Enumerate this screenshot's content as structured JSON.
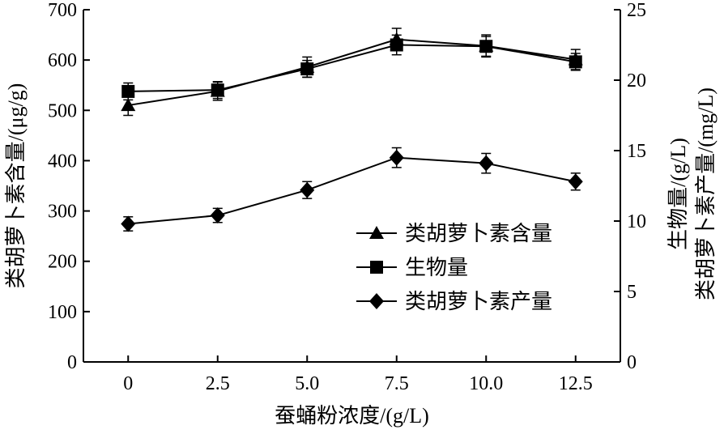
{
  "chart_data": {
    "type": "line",
    "x": [
      0,
      2.5,
      5.0,
      7.5,
      10.0,
      12.5
    ],
    "x_tick_labels": [
      "0",
      "2.5",
      "5.0",
      "7.5",
      "10.0",
      "12.5"
    ],
    "xlim": [
      -1.25,
      13.75
    ],
    "xlabel": "蚕蛹粉浓度/(g/L)",
    "ylabel_left": "类胡萝卜素含量/(μg/g)",
    "ylim_left": [
      0,
      700
    ],
    "yticks_left": [
      0,
      100,
      200,
      300,
      400,
      500,
      600,
      700
    ],
    "ylabel_right_line1": "生物量/(g/L)",
    "ylabel_right_line2": "类胡萝卜素产量/(mg/L)",
    "ylim_right": [
      0,
      25
    ],
    "yticks_right": [
      0,
      5,
      10,
      15,
      20,
      25
    ],
    "grid": false,
    "legend_position": "lower-right",
    "series": [
      {
        "name": "类胡萝卜素含量",
        "axis": "left",
        "marker": "triangle",
        "values": [
          510,
          538,
          586,
          641,
          628,
          601
        ],
        "errors": [
          20,
          18,
          20,
          22,
          22,
          20
        ]
      },
      {
        "name": "生物量",
        "axis": "right",
        "marker": "square",
        "values": [
          19.2,
          19.3,
          20.8,
          22.5,
          22.4,
          21.3
        ],
        "errors": [
          0.6,
          0.6,
          0.6,
          0.7,
          0.7,
          0.6
        ]
      },
      {
        "name": "类胡萝卜素产量",
        "axis": "right",
        "marker": "diamond",
        "values": [
          9.8,
          10.4,
          12.2,
          14.5,
          14.1,
          12.8
        ],
        "errors": [
          0.5,
          0.5,
          0.6,
          0.7,
          0.7,
          0.6
        ]
      }
    ]
  }
}
